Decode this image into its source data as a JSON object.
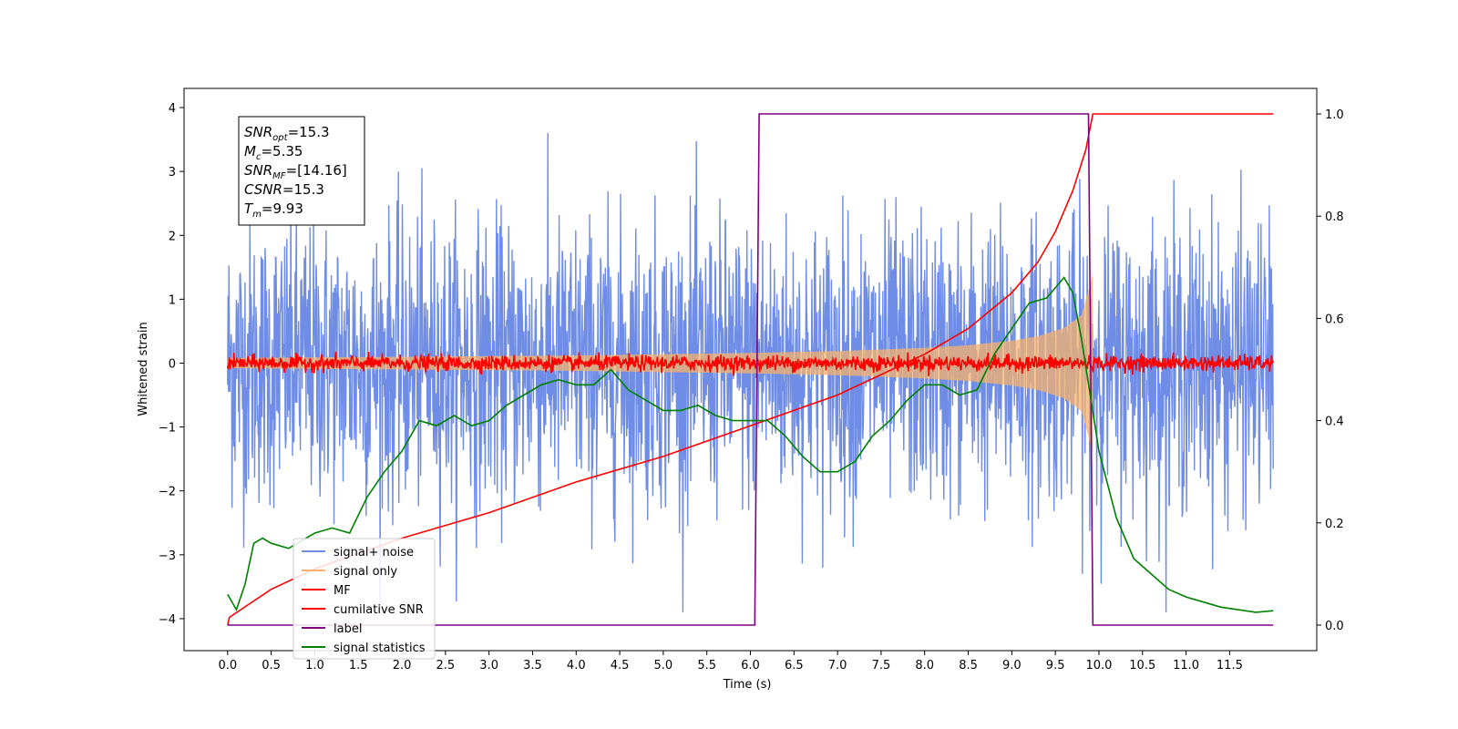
{
  "chart_data": {
    "type": "line",
    "xlabel": "Time (s)",
    "ylabel": "Whitened strain",
    "xlim": [
      -0.5,
      12.5
    ],
    "ylim": [
      -4.5,
      4.3
    ],
    "y2lim": [
      -0.05,
      1.05
    ],
    "x_ticks": [
      "0.0",
      "0.5",
      "1.0",
      "1.5",
      "2.0",
      "2.5",
      "3.0",
      "3.5",
      "4.0",
      "4.5",
      "5.0",
      "5.5",
      "6.0",
      "6.5",
      "7.0",
      "7.5",
      "8.0",
      "8.5",
      "9.0",
      "9.5",
      "10.0",
      "10.5",
      "11.0",
      "11.5"
    ],
    "y_ticks": [
      "4",
      "3",
      "2",
      "1",
      "0",
      "−1",
      "−2",
      "−3",
      "−4"
    ],
    "y2_ticks": [
      "1.0",
      "0.8",
      "0.6",
      "0.4",
      "0.2",
      "0.0"
    ],
    "legend_position": "lower-left",
    "annotation": {
      "lines": [
        {
          "main": "SNR",
          "sub": "opt",
          "rest": "=15.3"
        },
        {
          "main": "M",
          "sub": "c",
          "rest": "=5.35"
        },
        {
          "main": "SNR",
          "sub": "MF",
          "rest": "=[14.16]"
        },
        {
          "main": "CSNR",
          "sub": "",
          "rest": "=15.3"
        },
        {
          "main": "T",
          "sub": "m",
          "rest": "=9.93"
        }
      ]
    },
    "series": [
      {
        "name": "signal+ noise",
        "color": "#6f8de6",
        "axis": "left",
        "style": "noise band, amplitude approx ±2.5 with spikes up to ±4",
        "x_range": [
          0,
          12.0
        ]
      },
      {
        "name": "signal only",
        "color": "#f6b26b",
        "axis": "left",
        "style": "chirp envelope, amplitude grows to ~1.4 at t=9.93",
        "envelope_x": [
          0,
          2,
          4,
          6,
          7,
          8,
          8.5,
          9,
          9.3,
          9.6,
          9.8,
          9.93
        ],
        "envelope_y": [
          0.08,
          0.1,
          0.12,
          0.16,
          0.19,
          0.24,
          0.28,
          0.35,
          0.42,
          0.55,
          0.75,
          1.4
        ]
      },
      {
        "name": "MF",
        "color": "#ff0000",
        "axis": "left",
        "style": "noisy trace around 0, amplitude ~0.12",
        "x_range": [
          0,
          12.0
        ]
      },
      {
        "name": "cumilative SNR",
        "color": "#ff0000",
        "axis": "right",
        "x": [
          0.0,
          0.02,
          0.5,
          1.0,
          2.0,
          3.0,
          4.0,
          5.0,
          6.0,
          7.0,
          8.0,
          8.5,
          9.0,
          9.3,
          9.5,
          9.7,
          9.85,
          9.93,
          12.0
        ],
        "y": [
          0.0,
          0.015,
          0.07,
          0.11,
          0.17,
          0.22,
          0.28,
          0.33,
          0.39,
          0.45,
          0.53,
          0.58,
          0.65,
          0.71,
          0.77,
          0.85,
          0.93,
          1.0,
          1.0
        ]
      },
      {
        "name": "label",
        "color": "#800080",
        "axis": "right",
        "x": [
          0.0,
          6.05,
          6.1,
          9.88,
          9.93,
          12.0
        ],
        "y": [
          0.0,
          0.0,
          1.0,
          1.0,
          0.0,
          0.0
        ]
      },
      {
        "name": "signal statistics",
        "color": "#008000",
        "axis": "right",
        "x": [
          0.0,
          0.1,
          0.2,
          0.3,
          0.4,
          0.5,
          0.7,
          0.9,
          1.0,
          1.2,
          1.4,
          1.6,
          1.8,
          2.0,
          2.2,
          2.4,
          2.6,
          2.8,
          3.0,
          3.2,
          3.4,
          3.6,
          3.8,
          4.0,
          4.2,
          4.4,
          4.6,
          4.8,
          5.0,
          5.2,
          5.4,
          5.6,
          5.8,
          6.0,
          6.2,
          6.4,
          6.6,
          6.8,
          7.0,
          7.2,
          7.4,
          7.6,
          7.8,
          8.0,
          8.2,
          8.4,
          8.6,
          8.8,
          9.0,
          9.2,
          9.4,
          9.6,
          9.7,
          9.8,
          9.9,
          10.0,
          10.2,
          10.4,
          10.6,
          10.8,
          11.0,
          11.2,
          11.4,
          11.6,
          11.8,
          12.0
        ],
        "y": [
          0.06,
          0.03,
          0.08,
          0.16,
          0.17,
          0.16,
          0.15,
          0.17,
          0.18,
          0.19,
          0.18,
          0.25,
          0.3,
          0.34,
          0.4,
          0.39,
          0.41,
          0.39,
          0.4,
          0.43,
          0.45,
          0.47,
          0.48,
          0.47,
          0.47,
          0.5,
          0.46,
          0.44,
          0.42,
          0.42,
          0.43,
          0.41,
          0.4,
          0.4,
          0.4,
          0.37,
          0.33,
          0.3,
          0.3,
          0.32,
          0.37,
          0.4,
          0.44,
          0.47,
          0.47,
          0.45,
          0.46,
          0.53,
          0.58,
          0.63,
          0.64,
          0.68,
          0.65,
          0.56,
          0.45,
          0.34,
          0.21,
          0.13,
          0.1,
          0.07,
          0.055,
          0.045,
          0.035,
          0.03,
          0.025,
          0.028
        ]
      }
    ]
  }
}
